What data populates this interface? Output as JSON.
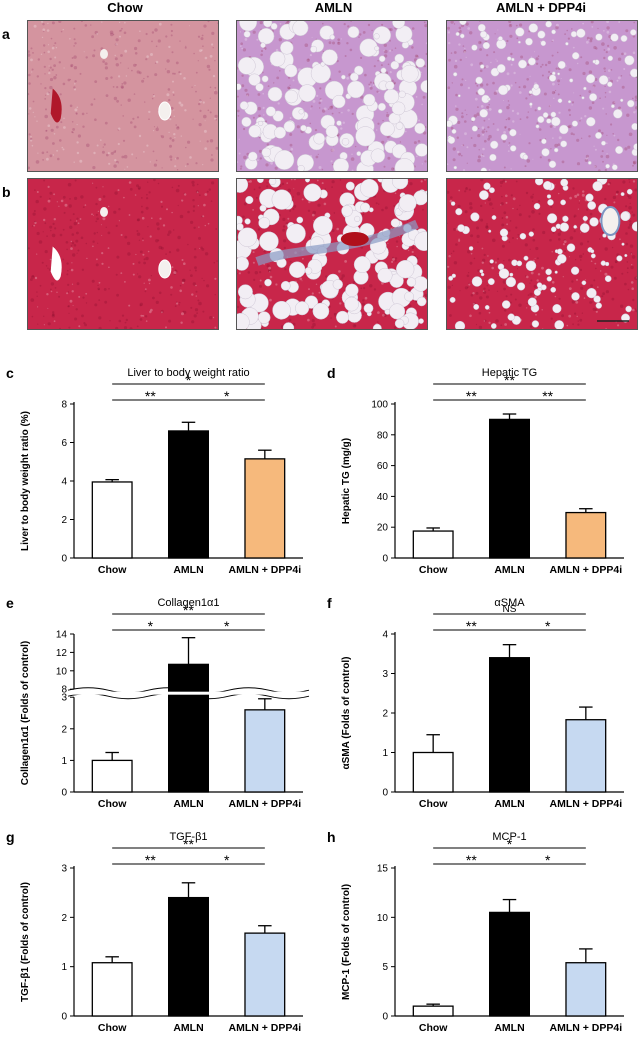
{
  "column_headers": [
    "Chow",
    "AMLN",
    "AMLN + DPP4i"
  ],
  "image_rows": [
    "a",
    "b"
  ],
  "colors": {
    "chow": "#ffffff",
    "amln": "#000000",
    "dpp4i_orange": "#f6b97c",
    "dpp4i_blue": "#c6d9f1",
    "he_stain": "#d4949f",
    "he_stain_purple": "#c797cf",
    "trichrome": "#c8264a",
    "fibrosis": "#8a9bc4"
  },
  "chart_data": [
    {
      "letter": "c",
      "type": "bar",
      "title": "Liver to body weight ratio",
      "ylabel": "Liver to body weight ratio (%)",
      "categories": [
        "Chow",
        "AMLN",
        "AMLN + DPP4i"
      ],
      "values": [
        3.95,
        6.6,
        5.15
      ],
      "errors": [
        0.12,
        0.45,
        0.45
      ],
      "fills": [
        "#ffffff",
        "#000000",
        "#f6b97c"
      ],
      "ylim": [
        0,
        8
      ],
      "yticks": [
        0,
        2,
        4,
        6,
        8
      ],
      "brackets": [
        {
          "from": 0,
          "to": 1,
          "label": "**"
        },
        {
          "from": 1,
          "to": 2,
          "label": "*"
        },
        {
          "from": 0,
          "to": 2,
          "label": "*"
        }
      ]
    },
    {
      "letter": "d",
      "type": "bar",
      "title": "Hepatic TG",
      "ylabel": "Hepatic TG (mg/g)",
      "categories": [
        "Chow",
        "AMLN",
        "AMLN + DPP4i"
      ],
      "values": [
        17.5,
        90,
        29.5
      ],
      "errors": [
        2,
        3.5,
        2.5
      ],
      "fills": [
        "#ffffff",
        "#000000",
        "#f6b97c"
      ],
      "ylim": [
        0,
        100
      ],
      "yticks": [
        0,
        20,
        40,
        60,
        80,
        100
      ],
      "brackets": [
        {
          "from": 0,
          "to": 1,
          "label": "**"
        },
        {
          "from": 1,
          "to": 2,
          "label": "**"
        },
        {
          "from": 0,
          "to": 2,
          "label": "**"
        }
      ]
    },
    {
      "letter": "e",
      "type": "bar",
      "title": "Collagen1α1",
      "ylabel": "Collagen1α1 (Folds of control)",
      "categories": [
        "Chow",
        "AMLN",
        "AMLN + DPP4i"
      ],
      "values": [
        1.0,
        10.7,
        2.6
      ],
      "errors": [
        0.25,
        2.9,
        0.35
      ],
      "fills": [
        "#ffffff",
        "#000000",
        "#c6d9f1"
      ],
      "axis_break": true,
      "lower_range": [
        0,
        3
      ],
      "lower_ticks": [
        0,
        1,
        2,
        3
      ],
      "upper_range": [
        8,
        14
      ],
      "upper_ticks": [
        8,
        10,
        12,
        14
      ],
      "brackets": [
        {
          "from": 0,
          "to": 1,
          "label": "*"
        },
        {
          "from": 1,
          "to": 2,
          "label": "*"
        },
        {
          "from": 0,
          "to": 2,
          "label": "**"
        }
      ]
    },
    {
      "letter": "f",
      "type": "bar",
      "title": "αSMA",
      "ylabel": "αSMA (Folds of control)",
      "categories": [
        "Chow",
        "AMLN",
        "AMLN + DPP4i"
      ],
      "values": [
        1.0,
        3.4,
        1.83
      ],
      "errors": [
        0.45,
        0.33,
        0.32
      ],
      "fills": [
        "#ffffff",
        "#000000",
        "#c6d9f1"
      ],
      "ylim": [
        0,
        4
      ],
      "yticks": [
        0,
        1,
        2,
        3,
        4
      ],
      "brackets": [
        {
          "from": 0,
          "to": 1,
          "label": "**"
        },
        {
          "from": 1,
          "to": 2,
          "label": "*"
        },
        {
          "from": 0,
          "to": 2,
          "label": "NS"
        }
      ]
    },
    {
      "letter": "g",
      "type": "bar",
      "title": "TGF-β1",
      "ylabel": "TGF-β1 (Folds of control)",
      "categories": [
        "Chow",
        "AMLN",
        "AMLN + DPP4i"
      ],
      "values": [
        1.08,
        2.4,
        1.68
      ],
      "errors": [
        0.12,
        0.3,
        0.15
      ],
      "fills": [
        "#ffffff",
        "#000000",
        "#c6d9f1"
      ],
      "ylim": [
        0,
        3
      ],
      "yticks": [
        0,
        1,
        2,
        3
      ],
      "brackets": [
        {
          "from": 0,
          "to": 1,
          "label": "**"
        },
        {
          "from": 1,
          "to": 2,
          "label": "*"
        },
        {
          "from": 0,
          "to": 2,
          "label": "**"
        }
      ]
    },
    {
      "letter": "h",
      "type": "bar",
      "title": "MCP-1",
      "ylabel": "MCP-1 (Folds of control)",
      "categories": [
        "Chow",
        "AMLN",
        "AMLN + DPP4i"
      ],
      "values": [
        1.0,
        10.5,
        5.4
      ],
      "errors": [
        0.2,
        1.3,
        1.4
      ],
      "fills": [
        "#ffffff",
        "#000000",
        "#c6d9f1"
      ],
      "ylim": [
        0,
        15
      ],
      "yticks": [
        0,
        5,
        10,
        15
      ],
      "brackets": [
        {
          "from": 0,
          "to": 1,
          "label": "**"
        },
        {
          "from": 1,
          "to": 2,
          "label": "*"
        },
        {
          "from": 0,
          "to": 2,
          "label": "*"
        }
      ]
    }
  ]
}
